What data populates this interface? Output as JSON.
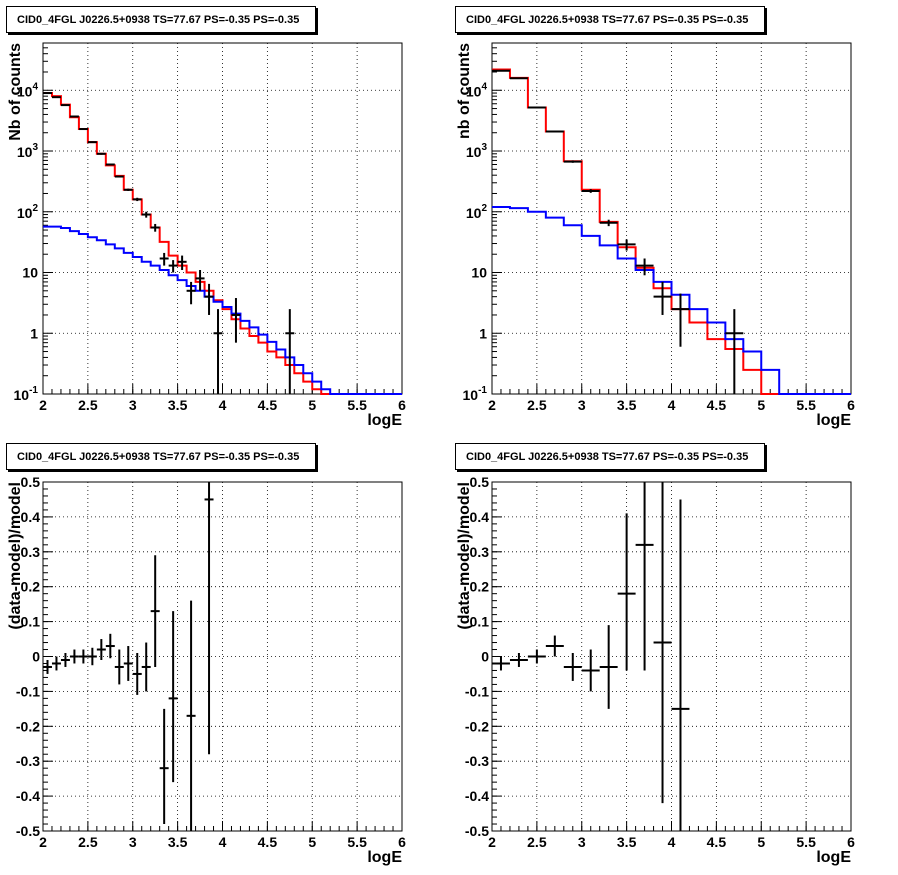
{
  "charts": [
    {
      "title": "CID0_4FGL J0226.5+0938 TS=77.67 PS=-0.35 PS=-0.35",
      "xlabel": "logE",
      "ylabel": "Nb of counts",
      "x_ticks": [
        "2",
        "2.5",
        "3",
        "3.5",
        "4",
        "4.5",
        "5",
        "5.5",
        "6"
      ],
      "y_ticks": [
        "10^-1",
        "1",
        "10",
        "10^2",
        "10^3",
        "10^4"
      ]
    },
    {
      "title": "CID0_4FGL J0226.5+0938 TS=77.67 PS=-0.35 PS=-0.35",
      "xlabel": "logE",
      "ylabel": "nb of counts",
      "x_ticks": [
        "2",
        "2.5",
        "3",
        "3.5",
        "4",
        "4.5",
        "5",
        "5.5",
        "6"
      ],
      "y_ticks": [
        "10^-1",
        "1",
        "10",
        "10^2",
        "10^3",
        "10^4"
      ]
    },
    {
      "title": "CID0_4FGL J0226.5+0938 TS=77.67 PS=-0.35 PS=-0.35",
      "xlabel": "logE",
      "ylabel": "(data-model)/model",
      "x_ticks": [
        "2",
        "2.5",
        "3",
        "3.5",
        "4",
        "4.5",
        "5",
        "5.5",
        "6"
      ],
      "y_ticks": [
        "-0.5",
        "-0.4",
        "-0.3",
        "-0.2",
        "-0.1",
        "0",
        "0.1",
        "0.2",
        "0.3",
        "0.4",
        "0.5"
      ]
    },
    {
      "title": "CID0_4FGL J0226.5+0938 TS=77.67 PS=-0.35 PS=-0.35",
      "xlabel": "logE",
      "ylabel": "(data-model)/model",
      "x_ticks": [
        "2",
        "2.5",
        "3",
        "3.5",
        "4",
        "4.5",
        "5",
        "5.5",
        "6"
      ],
      "y_ticks": [
        "-0.5",
        "-0.4",
        "-0.3",
        "-0.2",
        "-0.1",
        "0",
        "0.1",
        "0.2",
        "0.3",
        "0.4",
        "0.5"
      ]
    }
  ],
  "chart_data": [
    {
      "type": "line",
      "subtype": "histogram-with-errorbars",
      "title": "CID0_4FGL J0226.5+0938 TS=77.67 PS=-0.35 PS=-0.35",
      "xlabel": "logE",
      "ylabel": "Nb of counts",
      "xlim": [
        2,
        6
      ],
      "ylim": [
        0.1,
        60000
      ],
      "ylog": true,
      "grid": true,
      "bin_edges": [
        2.0,
        2.1,
        2.2,
        2.3,
        2.4,
        2.5,
        2.6,
        2.7,
        2.8,
        2.9,
        3.0,
        3.1,
        3.2,
        3.3,
        3.4,
        3.5,
        3.6,
        3.7,
        3.8,
        3.9,
        4.0,
        4.1,
        4.2,
        4.3,
        4.4,
        4.5,
        4.6,
        4.7,
        4.8,
        4.9,
        5.0,
        5.1,
        5.2,
        5.3,
        5.4,
        5.5,
        5.6,
        5.7,
        5.8,
        5.9,
        6.0
      ],
      "series": [
        {
          "color": "#ff0000",
          "values": [
            9000,
            8000,
            5800,
            3600,
            2300,
            1400,
            900,
            580,
            390,
            230,
            160,
            90,
            55,
            32,
            19,
            13,
            10,
            7,
            5,
            3.5,
            2.5,
            1.7,
            1.2,
            0.9,
            0.7,
            0.5,
            0.4,
            0.3,
            0.22,
            0.16,
            0.12,
            0.1,
            0.1,
            0.1,
            0.1,
            0.1,
            0.1,
            0.1,
            0.1,
            0.1
          ]
        },
        {
          "color": "#0000ff",
          "values": [
            57,
            57,
            54,
            48,
            43,
            38,
            34,
            29,
            25,
            21,
            18,
            15,
            13,
            11,
            9,
            7.5,
            6,
            5,
            4,
            3.3,
            2.7,
            2.1,
            1.6,
            1.25,
            0.95,
            0.72,
            0.54,
            0.4,
            0.3,
            0.22,
            0.16,
            0.12,
            0.1,
            0.1,
            0.1,
            0.1,
            0.1,
            0.1,
            0.1,
            0.1
          ]
        }
      ],
      "points": {
        "color": "#000000",
        "x": [
          2.05,
          2.15,
          2.25,
          2.35,
          2.45,
          2.55,
          2.65,
          2.75,
          2.85,
          2.95,
          3.05,
          3.15,
          3.25,
          3.35,
          3.45,
          3.55,
          3.65,
          3.75,
          3.85,
          3.95,
          4.15,
          4.75
        ],
        "y": [
          9000,
          7700,
          5700,
          3700,
          2300,
          1400,
          900,
          600,
          380,
          230,
          160,
          90,
          55,
          17,
          13,
          15,
          5,
          8,
          4,
          1,
          2,
          1
        ],
        "xerr": 0.05,
        "y_low": [
          8800,
          7500,
          5550,
          3600,
          2250,
          1360,
          870,
          580,
          370,
          220,
          150,
          80,
          47,
          13,
          10,
          11,
          3,
          5,
          2,
          0.1,
          0.7,
          0.1
        ],
        "y_high": [
          9200,
          7900,
          5850,
          3800,
          2350,
          1440,
          930,
          620,
          390,
          240,
          170,
          100,
          63,
          21,
          16,
          19,
          7,
          11,
          6.5,
          2.5,
          3.8,
          2.5
        ]
      }
    },
    {
      "type": "line",
      "subtype": "histogram-with-errorbars",
      "title": "CID0_4FGL J0226.5+0938 TS=77.67 PS=-0.35 PS=-0.35",
      "xlabel": "logE",
      "ylabel": "nb of counts",
      "xlim": [
        2,
        6
      ],
      "ylim": [
        0.1,
        60000
      ],
      "ylog": true,
      "grid": true,
      "bin_edges": [
        2.0,
        2.2,
        2.4,
        2.6,
        2.8,
        3.0,
        3.2,
        3.4,
        3.6,
        3.8,
        4.0,
        4.2,
        4.4,
        4.6,
        4.8,
        5.0,
        5.2,
        5.4,
        5.6,
        5.8,
        6.0
      ],
      "series": [
        {
          "color": "#ff0000",
          "values": [
            22000,
            16000,
            5200,
            2100,
            680,
            230,
            68,
            26,
            12,
            5.5,
            2.5,
            1.5,
            0.8,
            0.55,
            0.25,
            0.1,
            0.1,
            0.1,
            0.1,
            0.1
          ]
        },
        {
          "color": "#0000ff",
          "values": [
            120,
            115,
            100,
            80,
            60,
            40,
            28,
            17,
            11,
            7,
            4.3,
            2.5,
            1.5,
            0.8,
            0.5,
            0.25,
            0.1,
            0.1,
            0.1,
            0.1
          ]
        }
      ],
      "points": {
        "color": "#000000",
        "x": [
          2.1,
          2.3,
          2.5,
          2.7,
          2.9,
          3.1,
          3.3,
          3.5,
          3.7,
          3.9,
          4.1,
          4.7
        ],
        "y": [
          21000,
          15800,
          5200,
          2100,
          670,
          220,
          66,
          29,
          13,
          4,
          2.5,
          1
        ],
        "xerr": 0.1,
        "y_low": [
          20800,
          15600,
          5100,
          2050,
          640,
          205,
          58,
          23,
          9,
          2,
          0.6,
          0.1
        ],
        "y_high": [
          21200,
          16000,
          5300,
          2150,
          700,
          235,
          74,
          35,
          17,
          7,
          4.5,
          2.5
        ]
      }
    },
    {
      "type": "scatter",
      "subtype": "errorbars",
      "title": "CID0_4FGL J0226.5+0938 TS=77.67 PS=-0.35 PS=-0.35",
      "xlabel": "logE",
      "ylabel": "(data-model)/model",
      "xlim": [
        2,
        6
      ],
      "ylim": [
        -0.5,
        0.5
      ],
      "grid": true,
      "points": {
        "color": "#000000",
        "x": [
          2.05,
          2.15,
          2.25,
          2.35,
          2.45,
          2.55,
          2.65,
          2.75,
          2.85,
          2.95,
          3.05,
          3.15,
          3.25,
          3.35,
          3.45,
          3.65,
          3.85
        ],
        "y": [
          -0.03,
          -0.02,
          -0.01,
          0.0,
          0.0,
          0.0,
          0.02,
          0.03,
          -0.03,
          -0.02,
          -0.05,
          -0.03,
          0.13,
          -0.32,
          -0.12,
          -0.17,
          0.45
        ],
        "xerr": 0.05,
        "y_low": [
          -0.05,
          -0.04,
          -0.03,
          -0.02,
          -0.02,
          -0.025,
          -0.01,
          -0.005,
          -0.08,
          -0.07,
          -0.11,
          -0.1,
          -0.03,
          -0.48,
          -0.36,
          -0.5,
          -0.28
        ],
        "y_high": [
          -0.01,
          0.0,
          0.01,
          0.02,
          0.02,
          0.025,
          0.05,
          0.065,
          0.02,
          0.03,
          0.01,
          0.04,
          0.29,
          -0.15,
          0.13,
          0.16,
          0.5
        ]
      }
    },
    {
      "type": "scatter",
      "subtype": "errorbars",
      "title": "CID0_4FGL J0226.5+0938 TS=77.67 PS=-0.35 PS=-0.35",
      "xlabel": "logE",
      "ylabel": "(data-model)/model",
      "xlim": [
        2,
        6
      ],
      "ylim": [
        -0.5,
        0.5
      ],
      "grid": true,
      "points": {
        "color": "#000000",
        "x": [
          2.1,
          2.3,
          2.5,
          2.7,
          2.9,
          3.1,
          3.3,
          3.5,
          3.7,
          3.9,
          4.1
        ],
        "y": [
          -0.02,
          -0.01,
          0.0,
          0.03,
          -0.03,
          -0.04,
          -0.03,
          0.18,
          0.32,
          0.04,
          -0.15
        ],
        "xerr": 0.1,
        "y_low": [
          -0.04,
          -0.03,
          -0.02,
          0.0,
          -0.07,
          -0.1,
          -0.15,
          -0.04,
          -0.04,
          -0.42,
          -0.5
        ],
        "y_high": [
          0.0,
          0.01,
          0.02,
          0.06,
          0.01,
          0.02,
          0.09,
          0.41,
          0.5,
          0.5,
          0.45
        ]
      }
    }
  ]
}
